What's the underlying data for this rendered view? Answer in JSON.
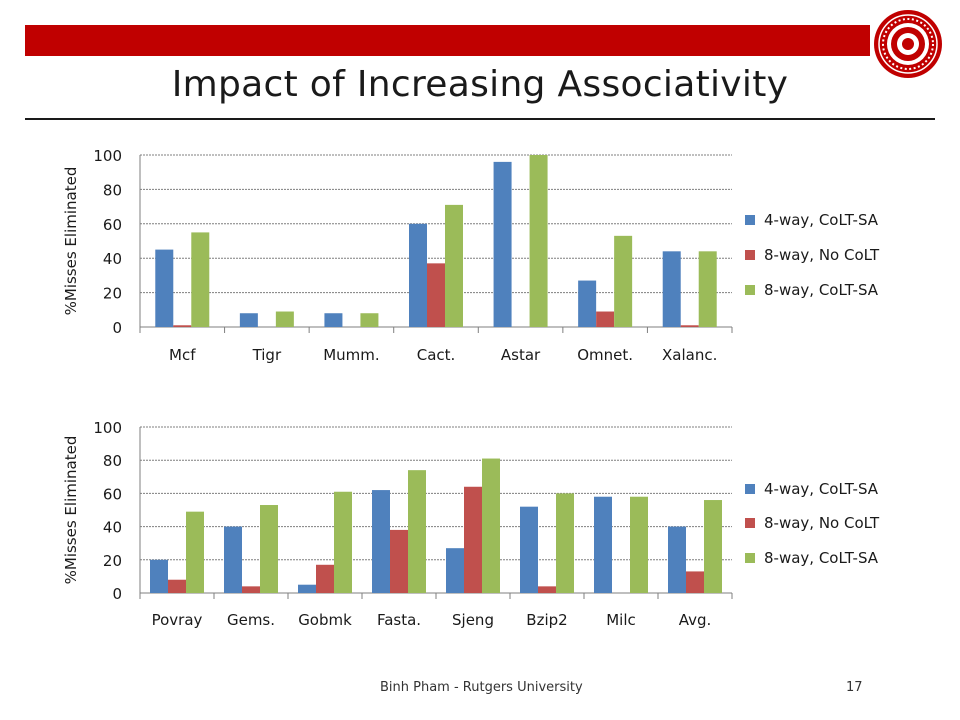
{
  "slide": {
    "title": "Impact of Increasing Associativity",
    "footer": "Binh Pham - Rutgers University",
    "page_number": "17"
  },
  "colors": {
    "banner": "#c00000",
    "series": [
      "#4f81bd",
      "#c0504d",
      "#9bbb59"
    ]
  },
  "icons": {
    "seal": "rutgers-seal-logo",
    "seal_text": "RUTGERS THE STATE UNIVERSITY OF NEW JERSEY"
  },
  "chart_data": [
    {
      "type": "bar",
      "title": "",
      "xlabel": "",
      "ylabel": "%Misses Eliminated",
      "ylim": [
        0,
        100
      ],
      "yticks": [
        0,
        20,
        40,
        60,
        80,
        100
      ],
      "grid": true,
      "legend": "right",
      "categories": [
        "Mcf",
        "Tigr",
        "Mumm.",
        "Cact.",
        "Astar",
        "Omnet.",
        "Xalanc."
      ],
      "series": [
        {
          "name": "4-way, CoLT-SA",
          "values": [
            45,
            8,
            8,
            60,
            96,
            27,
            44
          ]
        },
        {
          "name": "8-way, No CoLT",
          "values": [
            1,
            0,
            0,
            37,
            0,
            9,
            1
          ]
        },
        {
          "name": "8-way, CoLT-SA",
          "values": [
            55,
            9,
            8,
            71,
            100,
            53,
            44
          ]
        }
      ]
    },
    {
      "type": "bar",
      "title": "",
      "xlabel": "",
      "ylabel": "%Misses Eliminated",
      "ylim": [
        0,
        100
      ],
      "yticks": [
        0,
        20,
        40,
        60,
        80,
        100
      ],
      "grid": true,
      "legend": "right",
      "categories": [
        "Povray",
        "Gems.",
        "Gobmk",
        "Fasta.",
        "Sjeng",
        "Bzip2",
        "Milc",
        "Avg."
      ],
      "series": [
        {
          "name": "4-way, CoLT-SA",
          "values": [
            20,
            40,
            5,
            62,
            27,
            52,
            58,
            40
          ]
        },
        {
          "name": "8-way, No CoLT",
          "values": [
            8,
            4,
            17,
            38,
            64,
            4,
            0,
            13
          ]
        },
        {
          "name": "8-way, CoLT-SA",
          "values": [
            49,
            53,
            61,
            74,
            81,
            60,
            58,
            56
          ]
        }
      ]
    }
  ]
}
